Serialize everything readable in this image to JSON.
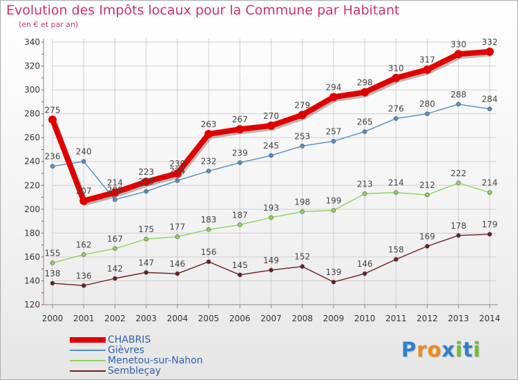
{
  "chart_data": {
    "type": "line",
    "title": "Evolution des Impôts locaux pour la Commune par Habitant",
    "subtitle": "(en € et par an)",
    "x": [
      "2000",
      "2001",
      "2002",
      "2003",
      "2004",
      "2005",
      "2006",
      "2007",
      "2008",
      "2009",
      "2010",
      "2011",
      "2012",
      "2013",
      "2014"
    ],
    "ylim": [
      120,
      340
    ],
    "yticks": [
      120,
      140,
      160,
      180,
      200,
      220,
      240,
      260,
      280,
      300,
      320,
      340
    ],
    "grid": true,
    "legend_position": "bottom-left",
    "series": [
      {
        "name": "CHABRIS",
        "color": "#e00000",
        "values": [
          275,
          207,
          214,
          223,
          230,
          263,
          267,
          270,
          279,
          294,
          298,
          310,
          317,
          330,
          332
        ]
      },
      {
        "name": "Gièvres",
        "color": "#4f8fc8",
        "values": [
          236,
          240,
          208,
          215,
          224,
          232,
          239,
          245,
          253,
          257,
          265,
          276,
          280,
          288,
          284
        ]
      },
      {
        "name": "Menetou-sur-Nahon",
        "color": "#8ed35c",
        "values": [
          155,
          162,
          167,
          175,
          177,
          183,
          187,
          193,
          198,
          199,
          213,
          214,
          212,
          222,
          214
        ]
      },
      {
        "name": "Sembleçay",
        "color": "#6b1f1f",
        "values": [
          138,
          136,
          142,
          147,
          146,
          156,
          145,
          149,
          152,
          139,
          146,
          158,
          169,
          178,
          179
        ]
      }
    ]
  },
  "logo": {
    "letters": [
      "P",
      "r",
      "o",
      "x",
      "i",
      "t",
      "i"
    ],
    "colors": [
      "#2f7fd0",
      "#f08a1a",
      "#f08a1a",
      "#2f7fd0",
      "#6cbf2a",
      "#2f7fd0",
      "#6cbf2a"
    ]
  }
}
